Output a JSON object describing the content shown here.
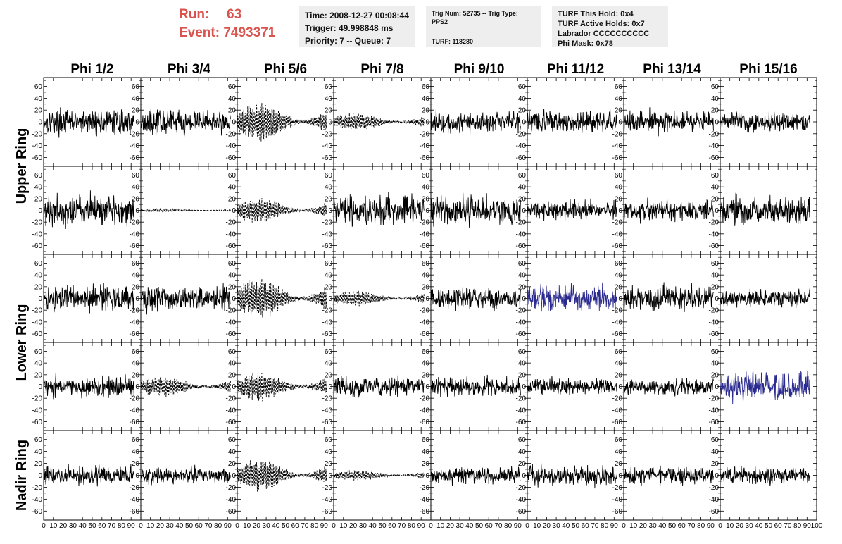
{
  "header": {
    "run_label": "Run:",
    "run_value": "63",
    "event_label": "Event:",
    "event_value": "7493371"
  },
  "info_time": {
    "line1": "Time: 2008-12-27 00:08:44",
    "line2": "Trigger: 49.998848 ms",
    "line3": "Priority: 7 -- Queue: 7"
  },
  "info_trig": {
    "line1": "Trig Num: 52735 -- Trig Type: PPS2",
    "line2": "TURF: 118280"
  },
  "info_turf": {
    "line1": "TURF This Hold: 0x4",
    "line2": "TURF Active Holds: 0x7",
    "line3": "Labrador CCCCCCCCCC",
    "line4": "Phi Mask: 0x78"
  },
  "chart_data": {
    "type": "line",
    "columns": [
      "Phi 1/2",
      "Phi 3/4",
      "Phi 5/6",
      "Phi 7/8",
      "Phi 9/10",
      "Phi 11/12",
      "Phi 13/14",
      "Phi 15/16"
    ],
    "ring_labels": [
      "Upper Ring",
      "Lower Ring",
      "Nadir Ring"
    ],
    "rows": 5,
    "row_groups": [
      {
        "label": "Upper Ring",
        "rows": [
          0,
          1
        ]
      },
      {
        "label": "Lower Ring",
        "rows": [
          2,
          3
        ]
      },
      {
        "label": "Nadir Ring",
        "rows": [
          4
        ]
      }
    ],
    "xlim": [
      0,
      100
    ],
    "ylim": [
      -75,
      75
    ],
    "y_ticks": [
      -60,
      -40,
      -20,
      0,
      20,
      40,
      60
    ],
    "x_ticks": [
      0,
      10,
      20,
      30,
      40,
      50,
      60,
      70,
      80,
      90,
      100
    ],
    "x_tick_labels": [
      "0",
      "10",
      "20",
      "30",
      "40",
      "50",
      "60",
      "70",
      "80",
      "90",
      "100"
    ],
    "x_tick_labels_last_col": [
      "0",
      "10",
      "20",
      "30",
      "40",
      "50",
      "60",
      "70",
      "80",
      "90",
      "100"
    ],
    "y_tick_labels": [
      "-60",
      "-40",
      "-20",
      "0",
      "20",
      "40",
      "60"
    ],
    "waveform_samples": 260,
    "waveform_x_range": [
      0,
      93
    ],
    "colors": {
      "default": "#000000",
      "highlight": "#2b2b8f"
    },
    "panels": [
      {
        "row": 0,
        "col": 0,
        "style": "solid",
        "amp": 17,
        "color": "default"
      },
      {
        "row": 0,
        "col": 1,
        "style": "solid",
        "amp": 17,
        "color": "default"
      },
      {
        "row": 0,
        "col": 2,
        "style": "dashed",
        "amp": 28,
        "color": "default"
      },
      {
        "row": 0,
        "col": 3,
        "style": "dashed",
        "amp": 12,
        "color": "default"
      },
      {
        "row": 0,
        "col": 4,
        "style": "solid",
        "amp": 15,
        "color": "default"
      },
      {
        "row": 0,
        "col": 5,
        "style": "solid",
        "amp": 15,
        "color": "default"
      },
      {
        "row": 0,
        "col": 6,
        "style": "solid",
        "amp": 15,
        "color": "default"
      },
      {
        "row": 0,
        "col": 7,
        "style": "solid",
        "amp": 13,
        "color": "default"
      },
      {
        "row": 1,
        "col": 0,
        "style": "solid",
        "amp": 22,
        "color": "default"
      },
      {
        "row": 1,
        "col": 1,
        "style": "dashed",
        "amp": 2,
        "color": "default"
      },
      {
        "row": 1,
        "col": 2,
        "style": "dashed",
        "amp": 17,
        "color": "default"
      },
      {
        "row": 1,
        "col": 3,
        "style": "solid",
        "amp": 20,
        "color": "default"
      },
      {
        "row": 1,
        "col": 4,
        "style": "solid",
        "amp": 20,
        "color": "default"
      },
      {
        "row": 1,
        "col": 5,
        "style": "solid",
        "amp": 13,
        "color": "default"
      },
      {
        "row": 1,
        "col": 6,
        "style": "solid",
        "amp": 14,
        "color": "default"
      },
      {
        "row": 1,
        "col": 7,
        "style": "solid",
        "amp": 20,
        "color": "default"
      },
      {
        "row": 2,
        "col": 0,
        "style": "solid",
        "amp": 18,
        "color": "default"
      },
      {
        "row": 2,
        "col": 1,
        "style": "solid",
        "amp": 20,
        "color": "default"
      },
      {
        "row": 2,
        "col": 2,
        "style": "dashed",
        "amp": 28,
        "color": "default"
      },
      {
        "row": 2,
        "col": 3,
        "style": "dashed",
        "amp": 11,
        "color": "default"
      },
      {
        "row": 2,
        "col": 4,
        "style": "solid",
        "amp": 14,
        "color": "default"
      },
      {
        "row": 2,
        "col": 5,
        "style": "solid",
        "amp": 18,
        "color": "highlight"
      },
      {
        "row": 2,
        "col": 6,
        "style": "solid",
        "amp": 18,
        "color": "default"
      },
      {
        "row": 2,
        "col": 7,
        "style": "solid",
        "amp": 12,
        "color": "default"
      },
      {
        "row": 3,
        "col": 0,
        "style": "solid",
        "amp": 15,
        "color": "default"
      },
      {
        "row": 3,
        "col": 1,
        "style": "dashed",
        "amp": 14,
        "color": "default"
      },
      {
        "row": 3,
        "col": 2,
        "style": "dashed",
        "amp": 20,
        "color": "default"
      },
      {
        "row": 3,
        "col": 3,
        "style": "solid",
        "amp": 14,
        "color": "default"
      },
      {
        "row": 3,
        "col": 4,
        "style": "solid",
        "amp": 14,
        "color": "default"
      },
      {
        "row": 3,
        "col": 5,
        "style": "solid",
        "amp": 12,
        "color": "default"
      },
      {
        "row": 3,
        "col": 6,
        "style": "solid",
        "amp": 12,
        "color": "default"
      },
      {
        "row": 3,
        "col": 7,
        "style": "solid",
        "amp": 20,
        "color": "highlight"
      },
      {
        "row": 4,
        "col": 0,
        "style": "solid",
        "amp": 12,
        "color": "default"
      },
      {
        "row": 4,
        "col": 1,
        "style": "solid",
        "amp": 11,
        "color": "default"
      },
      {
        "row": 4,
        "col": 2,
        "style": "dashed",
        "amp": 22,
        "color": "default"
      },
      {
        "row": 4,
        "col": 3,
        "style": "dashed",
        "amp": 7,
        "color": "default"
      },
      {
        "row": 4,
        "col": 4,
        "style": "solid",
        "amp": 12,
        "color": "default"
      },
      {
        "row": 4,
        "col": 5,
        "style": "solid",
        "amp": 14,
        "color": "default"
      },
      {
        "row": 4,
        "col": 6,
        "style": "solid",
        "amp": 12,
        "color": "default"
      },
      {
        "row": 4,
        "col": 7,
        "style": "solid",
        "amp": 12,
        "color": "default"
      }
    ]
  }
}
